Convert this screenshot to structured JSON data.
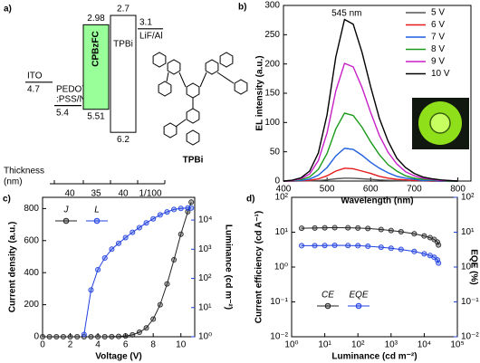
{
  "diagram": {
    "panel_label": "a)",
    "thickness_label": [
      "Thickness",
      "(nm)"
    ],
    "molecule_label": "TPBi",
    "layers": [
      {
        "name": [
          "ITO"
        ],
        "level": 4.7
      },
      {
        "name": [
          "PEDOT",
          ":PSS/Nf"
        ],
        "level": 5.4,
        "thickness": "40"
      },
      {
        "name": [
          "CPBzFC"
        ],
        "lumo": 2.98,
        "homo": 5.51,
        "thickness": "35",
        "color": "#99ff99",
        "name_color": "#e8302a"
      },
      {
        "name": [
          "TPBi"
        ],
        "lumo": 2.7,
        "homo": 6.2,
        "thickness": "40",
        "color": "#ffffff"
      },
      {
        "name": [
          "LiF/Al"
        ],
        "level": 3.1,
        "thickness": "1/100"
      }
    ]
  },
  "chart_data": [
    {
      "type": "line",
      "panel_label": "b)",
      "x_label": "Wavelength (nm)",
      "y_label": "EL intensity (a.u.)",
      "annotation": {
        "text": "545 nm",
        "x": 545
      },
      "x": [
        400,
        420,
        440,
        460,
        480,
        500,
        520,
        540,
        560,
        580,
        600,
        620,
        640,
        660,
        680,
        700,
        720,
        740,
        760,
        780,
        800
      ],
      "xlim": [
        400,
        830
      ],
      "xticks": [
        400,
        500,
        600,
        700,
        800
      ],
      "ylim": [
        0,
        300
      ],
      "yticks": [
        0,
        50,
        100,
        150,
        200,
        250,
        300
      ],
      "legend": "upper right",
      "markers": false,
      "series": [
        {
          "name": "5 V",
          "color": "#555555",
          "values": [
            0,
            0,
            0.1,
            0.3,
            0.9,
            2,
            3.8,
            4.9,
            4.8,
            3.9,
            2.9,
            1.9,
            1.2,
            0.7,
            0.4,
            0.2,
            0.1,
            0,
            0,
            0,
            0
          ]
        },
        {
          "name": "6 V",
          "color": "#e41a1c",
          "values": [
            0,
            0,
            0.4,
            1.3,
            3.7,
            9,
            17,
            22,
            21,
            17,
            13,
            8,
            5,
            3,
            2,
            1,
            1,
            0,
            0,
            0,
            0
          ]
        },
        {
          "name": "7 V",
          "color": "#1f5fe0",
          "values": [
            0,
            0.3,
            1,
            3.4,
            10,
            23,
            43,
            56,
            54,
            44,
            32,
            22,
            14,
            8,
            5,
            3,
            1,
            1,
            0,
            0,
            0
          ]
        },
        {
          "name": "8 V",
          "color": "#1a9a1a",
          "values": [
            0,
            0.6,
            2.4,
            7,
            20,
            47,
            89,
            116,
            112,
            92,
            67,
            45,
            28,
            17,
            9,
            5,
            3,
            2,
            1,
            0,
            0
          ]
        },
        {
          "name": "9 V",
          "color": "#c81ec8",
          "values": [
            0,
            1,
            4,
            12,
            35,
            82,
            154,
            201,
            195,
            160,
            117,
            78,
            49,
            29,
            16,
            9,
            5,
            3,
            1,
            1,
            0
          ]
        },
        {
          "name": "10 V",
          "color": "#000000",
          "values": [
            0,
            1.4,
            5.6,
            17,
            48,
            113,
            212,
            276,
            268,
            220,
            161,
            107,
            68,
            39,
            23,
            13,
            7,
            4,
            2,
            1,
            0
          ]
        }
      ]
    },
    {
      "type": "line",
      "panel_label": "c)",
      "x_label": "Voltage (V)",
      "y_label": "Current density (a.u.)",
      "y2_label": "Luminance (cd m⁻²)",
      "y2_color": "#2040e0",
      "x": [
        0,
        0.5,
        1,
        1.5,
        2,
        2.5,
        3,
        3.5,
        4,
        4.5,
        5,
        5.5,
        6,
        6.5,
        7,
        7.5,
        8,
        8.5,
        9,
        9.5,
        10,
        10.5,
        10.75
      ],
      "xlim": [
        0,
        11
      ],
      "xticks": [
        0,
        2,
        4,
        6,
        8,
        10
      ],
      "ylim": [
        0,
        870
      ],
      "yticks": [
        0,
        200,
        400,
        600,
        800
      ],
      "y2scale": "log",
      "y2lim": [
        1,
        60000
      ],
      "y2ticks": [
        {
          "value": 1,
          "label": "10⁰"
        },
        {
          "value": 10,
          "label": "10¹"
        },
        {
          "value": 100,
          "label": "10²"
        },
        {
          "value": 1000,
          "label": "10³"
        },
        {
          "value": 10000,
          "label": "10⁴"
        }
      ],
      "legend": "upper left",
      "markers": true,
      "series": [
        {
          "name": "J",
          "color": "#222222",
          "values": [
            0,
            0,
            0,
            0,
            0,
            0,
            0,
            0,
            0,
            0,
            1,
            2,
            5,
            12,
            28,
            55,
            110,
            200,
            330,
            480,
            640,
            780,
            840
          ]
        },
        {
          "name": "L",
          "color": "#2040e0",
          "axis": "y2",
          "values": [
            null,
            null,
            null,
            null,
            null,
            null,
            1.2,
            40,
            200,
            500,
            1000,
            1600,
            2500,
            3800,
            5500,
            8000,
            11000,
            15000,
            19000,
            23000,
            25000,
            26000,
            26000
          ]
        }
      ]
    },
    {
      "type": "line",
      "panel_label": "d)",
      "x_label": "Luminance (cd m⁻²)",
      "y_label": "Current efficiency (cd A⁻¹)",
      "y2_label": "EQE (%)",
      "y2_color": "#2040e0",
      "xscale": "log",
      "yscale": "log",
      "y2scale": "log",
      "x": [
        2,
        5,
        10,
        20,
        50,
        100,
        200,
        500,
        1000,
        2000,
        5000,
        10000,
        15000,
        20000,
        25000,
        27000
      ],
      "xlim": [
        1,
        100000
      ],
      "xticks": [
        {
          "value": 1,
          "label": "10⁰"
        },
        {
          "value": 10,
          "label": "10¹"
        },
        {
          "value": 100,
          "label": "10²"
        },
        {
          "value": 1000,
          "label": "10³"
        },
        {
          "value": 10000,
          "label": "10⁴"
        },
        {
          "value": 100000,
          "label": "10⁵"
        }
      ],
      "ylim": [
        0.01,
        100
      ],
      "yticks": [
        {
          "value": 0.01,
          "label": "10⁻²"
        },
        {
          "value": 0.1,
          "label": "10⁻¹"
        },
        {
          "value": 1,
          "label": "10⁰"
        },
        {
          "value": 10,
          "label": "10¹"
        },
        {
          "value": 100,
          "label": "10²"
        }
      ],
      "y2lim": [
        0.01,
        100
      ],
      "y2ticks": [
        {
          "value": 0.01,
          "label": "10⁻²"
        },
        {
          "value": 0.1,
          "label": "10⁻¹"
        },
        {
          "value": 1,
          "label": "10⁰"
        },
        {
          "value": 10,
          "label": "10¹"
        },
        {
          "value": 100,
          "label": "10²"
        }
      ],
      "legend": "lower left",
      "markers": true,
      "series": [
        {
          "name": "CE",
          "color": "#222222",
          "values": [
            13,
            13.2,
            13.4,
            13.5,
            13.4,
            13.2,
            12.8,
            12,
            11.2,
            10.3,
            9,
            7.8,
            7,
            6.2,
            5.2,
            4.3
          ]
        },
        {
          "name": "EQE",
          "color": "#2040e0",
          "axis": "y2",
          "values": [
            4.1,
            4.1,
            4.15,
            4.2,
            4.15,
            4.1,
            3.95,
            3.7,
            3.45,
            3.2,
            2.8,
            2.4,
            2.15,
            1.9,
            1.6,
            1.3
          ]
        }
      ]
    }
  ]
}
